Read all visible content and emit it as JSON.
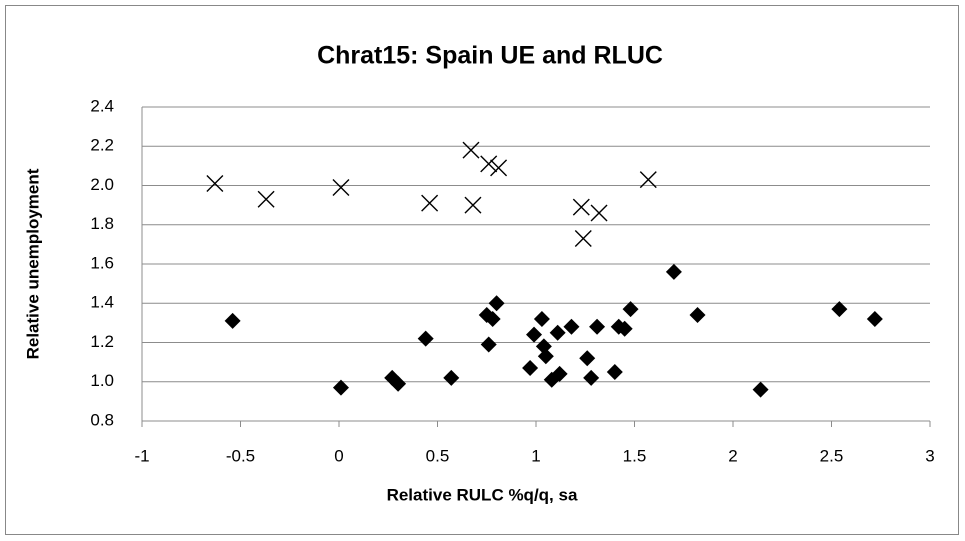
{
  "chart_data": {
    "type": "scatter",
    "title": "Chrat15: Spain UE and RLUC",
    "x_label": "Relative RULC %q/q, sa",
    "y_label": "Relative unemployment",
    "xlim": [
      -1,
      3
    ],
    "ylim": [
      0.8,
      2.4
    ],
    "xticks": [
      -1,
      -0.5,
      0,
      0.5,
      1,
      1.5,
      2,
      2.5,
      3
    ],
    "yticks": [
      0.8,
      {
        "value": 1.0,
        "label": "1.0"
      },
      1.2,
      1.4,
      1.6,
      1.8,
      {
        "value": 2.0,
        "label": "2.0"
      },
      2.2,
      2.4
    ],
    "grid": true,
    "series": [
      {
        "marker": "diamond",
        "color": "#000000",
        "x": [
          -0.54,
          0.01,
          0.27,
          0.3,
          0.44,
          0.57,
          0.75,
          0.76,
          0.78,
          0.8,
          0.97,
          0.99,
          1.03,
          1.04,
          1.05,
          1.08,
          1.11,
          1.12,
          1.18,
          1.26,
          1.28,
          1.31,
          1.4,
          1.42,
          1.45,
          1.48,
          1.7,
          1.82,
          2.14,
          2.54,
          2.72
        ],
        "values": [
          1.31,
          0.97,
          1.02,
          0.99,
          1.22,
          1.02,
          1.34,
          1.19,
          1.32,
          1.4,
          1.07,
          1.24,
          1.32,
          1.18,
          1.13,
          1.01,
          1.25,
          1.04,
          1.28,
          1.12,
          1.02,
          1.28,
          1.05,
          1.28,
          1.27,
          1.37,
          1.56,
          1.34,
          0.96,
          1.37,
          1.32
        ]
      },
      {
        "marker": "x",
        "color": "#000000",
        "x": [
          -0.63,
          -0.37,
          0.01,
          0.46,
          0.67,
          0.68,
          0.76,
          0.81,
          1.23,
          1.24,
          1.32,
          1.57
        ],
        "values": [
          2.01,
          1.93,
          1.99,
          1.91,
          2.18,
          1.9,
          2.11,
          2.09,
          1.89,
          1.73,
          1.86,
          2.03
        ]
      }
    ]
  }
}
